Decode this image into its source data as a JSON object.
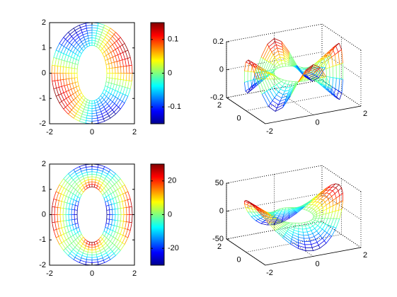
{
  "chart_data": [
    {
      "type": "mesh2d",
      "xlim": [
        -2,
        2
      ],
      "ylim": [
        -2,
        2
      ],
      "xticks": [
        -2,
        0,
        2
      ],
      "yticks": [
        -2,
        -1,
        0,
        1,
        2
      ],
      "colorbar": {
        "clim": [
          -0.15,
          0.15
        ],
        "ticks": [
          -0.1,
          0,
          0.1
        ]
      }
    },
    {
      "type": "mesh3d",
      "xlim": [
        -2,
        2
      ],
      "ylim": [
        -2,
        2
      ],
      "zlim": [
        -0.2,
        0.2
      ],
      "xticks": [
        -2,
        0,
        2
      ],
      "yticks": [
        0,
        2
      ],
      "zticks": [
        -0.2,
        0,
        0.2
      ]
    },
    {
      "type": "mesh2d",
      "xlim": [
        -2,
        2
      ],
      "ylim": [
        -2,
        2
      ],
      "xticks": [
        -2,
        0,
        2
      ],
      "yticks": [
        -2,
        -1,
        0,
        1,
        2
      ],
      "colorbar": {
        "clim": [
          -30,
          30
        ],
        "ticks": [
          -20,
          0,
          20
        ]
      }
    },
    {
      "type": "mesh3d",
      "xlim": [
        -2,
        2
      ],
      "ylim": [
        -2,
        2
      ],
      "zlim": [
        -50,
        50
      ],
      "xticks": [
        -2,
        0,
        2
      ],
      "yticks": [
        0,
        2
      ],
      "zticks": [
        -50,
        0,
        50
      ]
    }
  ]
}
